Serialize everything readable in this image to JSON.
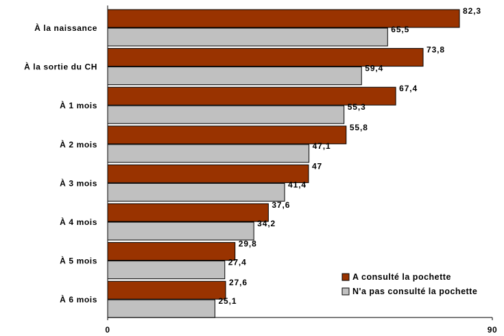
{
  "chart_data": {
    "type": "bar",
    "orientation": "horizontal",
    "categories": [
      "À la naissance",
      "À la sortie du CH",
      "À 1 mois",
      "À 2 mois",
      "À 3 mois",
      "À 4 mois",
      "À 5 mois",
      "À 6 mois"
    ],
    "series": [
      {
        "name": "A consulté la pochette",
        "color": "#993300",
        "values": [
          82.3,
          73.8,
          67.4,
          55.8,
          47,
          37.6,
          29.8,
          27.6
        ],
        "labels": [
          "82,3",
          "73,8",
          "67,4",
          "55,8",
          "47",
          "37,6",
          "29,8",
          "27,6"
        ]
      },
      {
        "name": "N'a pas consulté la pochette",
        "color": "#c0c0c0",
        "values": [
          65.5,
          59.4,
          55.3,
          47.1,
          41.4,
          34.2,
          27.4,
          25.1
        ],
        "labels": [
          "65,5",
          "59,4",
          "55,3",
          "47,1",
          "41,4",
          "34,2",
          "27,4",
          "25,1"
        ]
      }
    ],
    "xlim": [
      0,
      90
    ],
    "x_ticks": [
      {
        "value": 0,
        "label": "0"
      },
      {
        "value": 90,
        "label": "90"
      }
    ],
    "grid": false,
    "legend": {
      "position": "bottom-right"
    }
  }
}
